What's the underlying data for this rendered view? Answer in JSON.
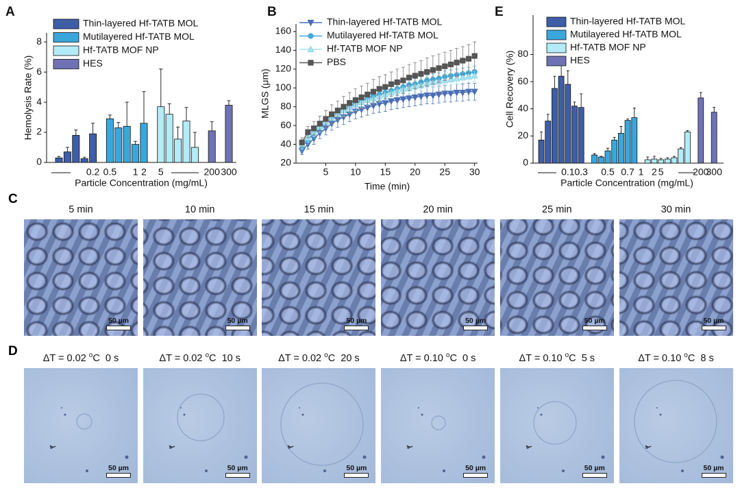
{
  "chart_data": [
    {
      "type": "bar",
      "panel": "A",
      "ylabel": "Hemolysis Rate (%)",
      "xlabel": "Particle Concentration (mg/mL)",
      "categories": [
        null,
        null,
        null,
        null,
        "0.2",
        null,
        "0.5",
        null,
        null,
        "1",
        "2",
        null,
        "5",
        null,
        null,
        null,
        null,
        null,
        "200",
        null,
        "300"
      ],
      "ylim": [
        0,
        8.6
      ],
      "yticks": [
        0,
        2,
        4,
        6,
        8
      ],
      "series": [
        {
          "name": "Thin-layered Hf-TATB MOL",
          "color": "#3f5ea8",
          "values": [
            0.3,
            0.7,
            1.8,
            0.25,
            1.9,
            null,
            null,
            null,
            null,
            null,
            null,
            null,
            null,
            null,
            null,
            null,
            null,
            null,
            null,
            null,
            null
          ],
          "errors": [
            0.1,
            0.3,
            0.35,
            0.1,
            0.7,
            null,
            null,
            null,
            null,
            null,
            null,
            null,
            null,
            null,
            null,
            null,
            null,
            null,
            null,
            null,
            null
          ]
        },
        {
          "name": "Mutilayered Hf-TATB MOL",
          "color": "#3aa7dc",
          "values": [
            null,
            null,
            null,
            null,
            null,
            null,
            2.9,
            2.3,
            2.4,
            1.2,
            2.6,
            null,
            null,
            null,
            null,
            null,
            null,
            null,
            null,
            null,
            null
          ],
          "errors": [
            null,
            null,
            null,
            null,
            null,
            null,
            0.25,
            0.35,
            1.6,
            0.2,
            2.1,
            null,
            null,
            null,
            null,
            null,
            null,
            null,
            null,
            null,
            null
          ]
        },
        {
          "name": "Hf-TATB MOF NP",
          "color": "#b3ecf7",
          "values": [
            null,
            null,
            null,
            null,
            null,
            null,
            null,
            null,
            null,
            null,
            null,
            null,
            3.7,
            3.2,
            1.55,
            2.75,
            1.0,
            null,
            null,
            null,
            null
          ],
          "errors": [
            null,
            null,
            null,
            null,
            null,
            null,
            null,
            null,
            null,
            null,
            null,
            null,
            2.5,
            0.7,
            0.8,
            0.9,
            1.0,
            null,
            null,
            null,
            null
          ]
        },
        {
          "name": "HES",
          "color": "#6f73b5",
          "values": [
            null,
            null,
            null,
            null,
            null,
            null,
            null,
            null,
            null,
            null,
            null,
            null,
            null,
            null,
            null,
            null,
            null,
            null,
            2.1,
            null,
            3.8
          ],
          "errors": [
            null,
            null,
            null,
            null,
            null,
            null,
            null,
            null,
            null,
            null,
            null,
            null,
            null,
            null,
            null,
            null,
            null,
            null,
            0.6,
            null,
            0.3
          ]
        }
      ]
    },
    {
      "type": "line",
      "panel": "B",
      "ylabel": "MLGS (μm)",
      "xlabel": "Time (min)",
      "x": [
        1,
        2,
        3,
        4,
        5,
        6,
        7,
        8,
        9,
        10,
        11,
        12,
        13,
        14,
        15,
        16,
        17,
        18,
        19,
        20,
        21,
        22,
        23,
        24,
        25,
        26,
        27,
        28,
        29,
        30
      ],
      "xlim": [
        0,
        30.5
      ],
      "xticks": [
        5,
        10,
        15,
        20,
        25,
        30
      ],
      "ylim": [
        20,
        168
      ],
      "yticks": [
        20,
        40,
        60,
        80,
        100,
        120,
        140,
        160
      ],
      "series": [
        {
          "name": "Thin-layered Hf-TATB MOL",
          "color": "#4a6fb5",
          "marker": "triangle-down",
          "values": [
            33,
            40,
            46,
            52,
            57,
            62,
            66,
            69,
            72,
            75,
            77,
            79,
            81,
            83,
            84,
            86,
            87,
            88,
            89,
            90,
            91,
            92,
            92,
            93,
            94,
            94,
            95,
            95,
            96,
            96
          ],
          "errors": [
            4,
            5,
            6,
            6,
            7,
            7,
            8,
            8,
            8,
            8,
            8,
            8,
            8,
            9,
            9,
            9,
            9,
            9,
            9,
            9,
            9,
            9,
            9,
            9,
            9,
            9,
            9,
            9,
            9,
            9
          ]
        },
        {
          "name": "Mutilayered Hf-TATB MOL",
          "color": "#3fa8dc",
          "marker": "circle",
          "values": [
            38,
            45,
            52,
            58,
            63,
            68,
            72,
            76,
            80,
            83,
            86,
            88,
            91,
            93,
            95,
            97,
            99,
            101,
            103,
            104,
            106,
            108,
            109,
            110,
            112,
            113,
            114,
            115,
            116,
            117
          ],
          "errors": [
            5,
            5,
            6,
            6,
            6,
            6,
            6,
            6,
            6,
            6,
            6,
            6,
            6,
            6,
            6,
            6,
            6,
            6,
            6,
            6,
            6,
            6,
            6,
            6,
            6,
            6,
            6,
            6,
            6,
            6
          ]
        },
        {
          "name": "Hf-TATB MOF NP",
          "color": "#a6e4f2",
          "marker": "triangle-up",
          "values": [
            40,
            47,
            53,
            59,
            64,
            68,
            72,
            76,
            79,
            82,
            85,
            87,
            89,
            91,
            93,
            95,
            97,
            99,
            100,
            102,
            103,
            105,
            106,
            107,
            108,
            109,
            110,
            111,
            112,
            113
          ],
          "errors": [
            5,
            5,
            5,
            6,
            6,
            6,
            6,
            6,
            6,
            6,
            6,
            6,
            6,
            6,
            6,
            6,
            6,
            6,
            6,
            6,
            6,
            6,
            6,
            6,
            6,
            6,
            6,
            6,
            6,
            6
          ]
        },
        {
          "name": "PBS",
          "color": "#555555",
          "marker": "square",
          "values": [
            42,
            53,
            57,
            62,
            67,
            72,
            76,
            80,
            84,
            87,
            90,
            93,
            96,
            99,
            101,
            104,
            106,
            108,
            111,
            113,
            115,
            117,
            119,
            121,
            123,
            125,
            127,
            129,
            131,
            134
          ],
          "errors": [
            5,
            6,
            7,
            8,
            9,
            10,
            10,
            11,
            11,
            12,
            12,
            12,
            13,
            13,
            13,
            13,
            14,
            14,
            14,
            14,
            14,
            15,
            15,
            15,
            15,
            15,
            15,
            15,
            15,
            15
          ]
        }
      ]
    },
    {
      "type": "bar",
      "panel": "E",
      "ylabel": "Cell Recovery (%)",
      "xlabel": "Particle Concentration (mg/mL)",
      "categories": [
        null,
        null,
        null,
        null,
        "0.1",
        null,
        "0.3",
        null,
        null,
        null,
        "0.5",
        null,
        null,
        "0.7",
        null,
        "1",
        null,
        "2",
        "5",
        null,
        null,
        null,
        null,
        null,
        "200",
        null,
        "300"
      ],
      "ylim": [
        0,
        109
      ],
      "yticks": [
        0,
        20,
        40,
        60,
        80
      ],
      "series": [
        {
          "name": "Thin-layered Hf-TATB MOL",
          "color": "#3f5ea8",
          "values": [
            17,
            31,
            55,
            64,
            58,
            42,
            41,
            null,
            null,
            null,
            null,
            null,
            null,
            null,
            null,
            null,
            null,
            null,
            null,
            null,
            null,
            null,
            null,
            null,
            null,
            null,
            null
          ],
          "errors": [
            6,
            5,
            9,
            10,
            10,
            3,
            10,
            null,
            null,
            null,
            null,
            null,
            null,
            null,
            null,
            null,
            null,
            null,
            null,
            null,
            null,
            null,
            null,
            null,
            null,
            null,
            null
          ]
        },
        {
          "name": "Mutilayered Hf-TATB MOL",
          "color": "#3aa7dc",
          "values": [
            null,
            null,
            null,
            null,
            null,
            null,
            null,
            null,
            6,
            4.5,
            9,
            17,
            22,
            31.5,
            33.5,
            null,
            null,
            null,
            null,
            null,
            null,
            null,
            null,
            null,
            null,
            null,
            null
          ],
          "errors": [
            null,
            null,
            null,
            null,
            null,
            null,
            null,
            null,
            1,
            0.5,
            2,
            2,
            5,
            1,
            7,
            null,
            null,
            null,
            null,
            null,
            null,
            null,
            null,
            null,
            null,
            null,
            null
          ]
        },
        {
          "name": "Hf-TATB MOF NP",
          "color": "#b3ecf7",
          "values": [
            null,
            null,
            null,
            null,
            null,
            null,
            null,
            null,
            null,
            null,
            null,
            null,
            null,
            null,
            null,
            null,
            2.5,
            3,
            2.5,
            3,
            4,
            10.5,
            23,
            null,
            null,
            null,
            null
          ],
          "errors": [
            null,
            null,
            null,
            null,
            null,
            null,
            null,
            null,
            null,
            null,
            null,
            null,
            null,
            null,
            null,
            null,
            2,
            2,
            1,
            1,
            1,
            1,
            1,
            null,
            null,
            null,
            null
          ]
        },
        {
          "name": "HES",
          "color": "#6f73b5",
          "values": [
            null,
            null,
            null,
            null,
            null,
            null,
            null,
            null,
            null,
            null,
            null,
            null,
            null,
            null,
            null,
            null,
            null,
            null,
            null,
            null,
            null,
            null,
            null,
            null,
            48,
            null,
            37.5
          ],
          "errors": [
            null,
            null,
            null,
            null,
            null,
            null,
            null,
            null,
            null,
            null,
            null,
            null,
            null,
            null,
            null,
            null,
            null,
            null,
            null,
            null,
            null,
            null,
            null,
            null,
            4,
            null,
            3.5
          ]
        }
      ]
    }
  ],
  "panel_c": {
    "label": "C",
    "scale_bar": "50 µm",
    "frames": [
      "5 min",
      "10 min",
      "15 min",
      "20 min",
      "25 min",
      "30 min"
    ]
  },
  "panel_d": {
    "label": "D",
    "scale_bar": "50 µm",
    "frames": [
      {
        "delta": "ΔT = 0.02",
        "sup": "o",
        "unit": "C",
        "time": "0 s"
      },
      {
        "delta": "ΔT = 0.02",
        "sup": "o",
        "unit": "C",
        "time": "10 s"
      },
      {
        "delta": "ΔT = 0.02",
        "sup": "o",
        "unit": "C",
        "time": "20 s"
      },
      {
        "delta": "ΔT = 0.10",
        "sup": "o",
        "unit": "C",
        "time": "0 s"
      },
      {
        "delta": "ΔT = 0.10",
        "sup": "o",
        "unit": "C",
        "time": "5 s"
      },
      {
        "delta": "ΔT = 0.10",
        "sup": "o",
        "unit": "C",
        "time": "8 s"
      }
    ]
  }
}
